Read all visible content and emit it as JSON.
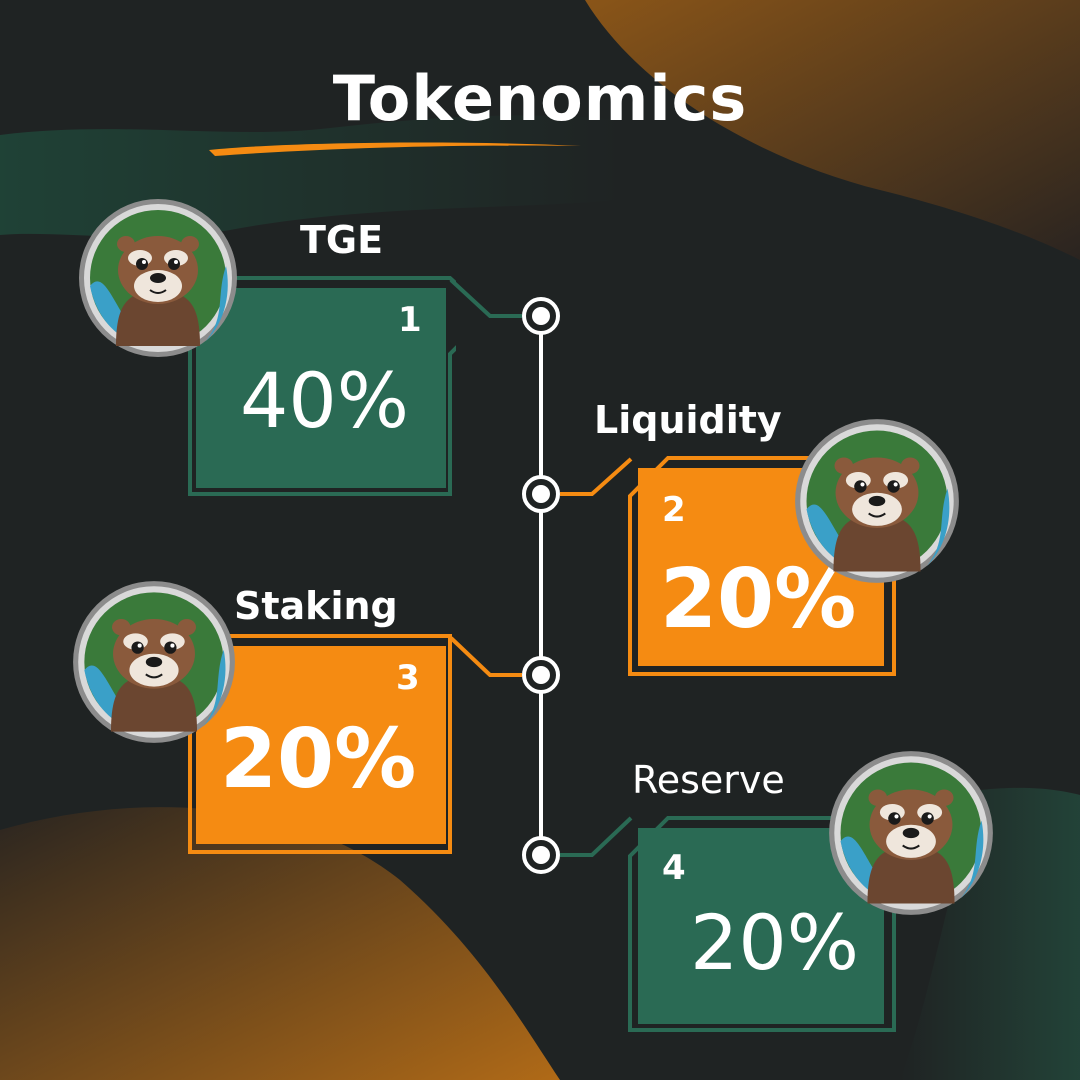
{
  "title": "Tokenomics",
  "colors": {
    "background": "#1f2323",
    "green": "#2a6a54",
    "orange": "#f58b12",
    "white": "#ffffff"
  },
  "allocations": [
    {
      "label": "TGE",
      "number": "1",
      "percent": "40%",
      "color": "green"
    },
    {
      "label": "Liquidity",
      "number": "2",
      "percent": "20%",
      "color": "orange"
    },
    {
      "label": "Staking",
      "number": "3",
      "percent": "20%",
      "color": "orange"
    },
    {
      "label": "Reserve",
      "number": "4",
      "percent": "20%",
      "color": "green"
    }
  ],
  "avatar_icon": "otter-mascot-icon"
}
